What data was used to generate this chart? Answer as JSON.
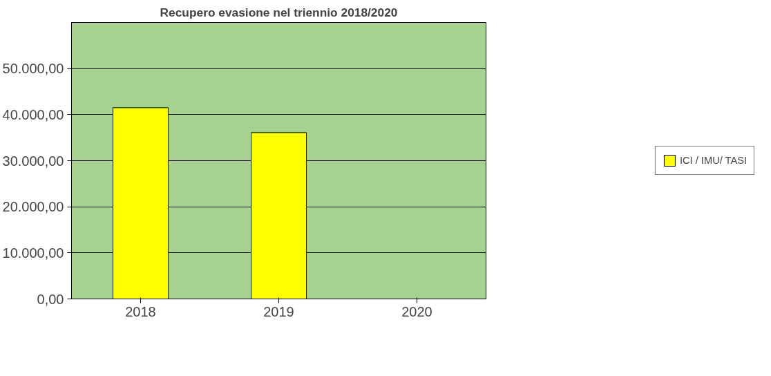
{
  "chart_data": {
    "type": "bar",
    "title": "Recupero evasione nel triennio 2018/2020",
    "categories": [
      "2018",
      "2019",
      "2020"
    ],
    "series": [
      {
        "name": "ICI / IMU/ TASI",
        "color": "#ffff00",
        "values": [
          41500,
          36100,
          0
        ]
      }
    ],
    "ylim": [
      0,
      60000
    ],
    "yticks": [
      {
        "value": 0,
        "label": "0,00"
      },
      {
        "value": 10000,
        "label": "10.000,00"
      },
      {
        "value": 20000,
        "label": "20.000,00"
      },
      {
        "value": 30000,
        "label": "30.000,00"
      },
      {
        "value": 40000,
        "label": "40.000,00"
      },
      {
        "value": 50000,
        "label": "50.000,00"
      }
    ],
    "grid": "y",
    "legend": "right"
  }
}
